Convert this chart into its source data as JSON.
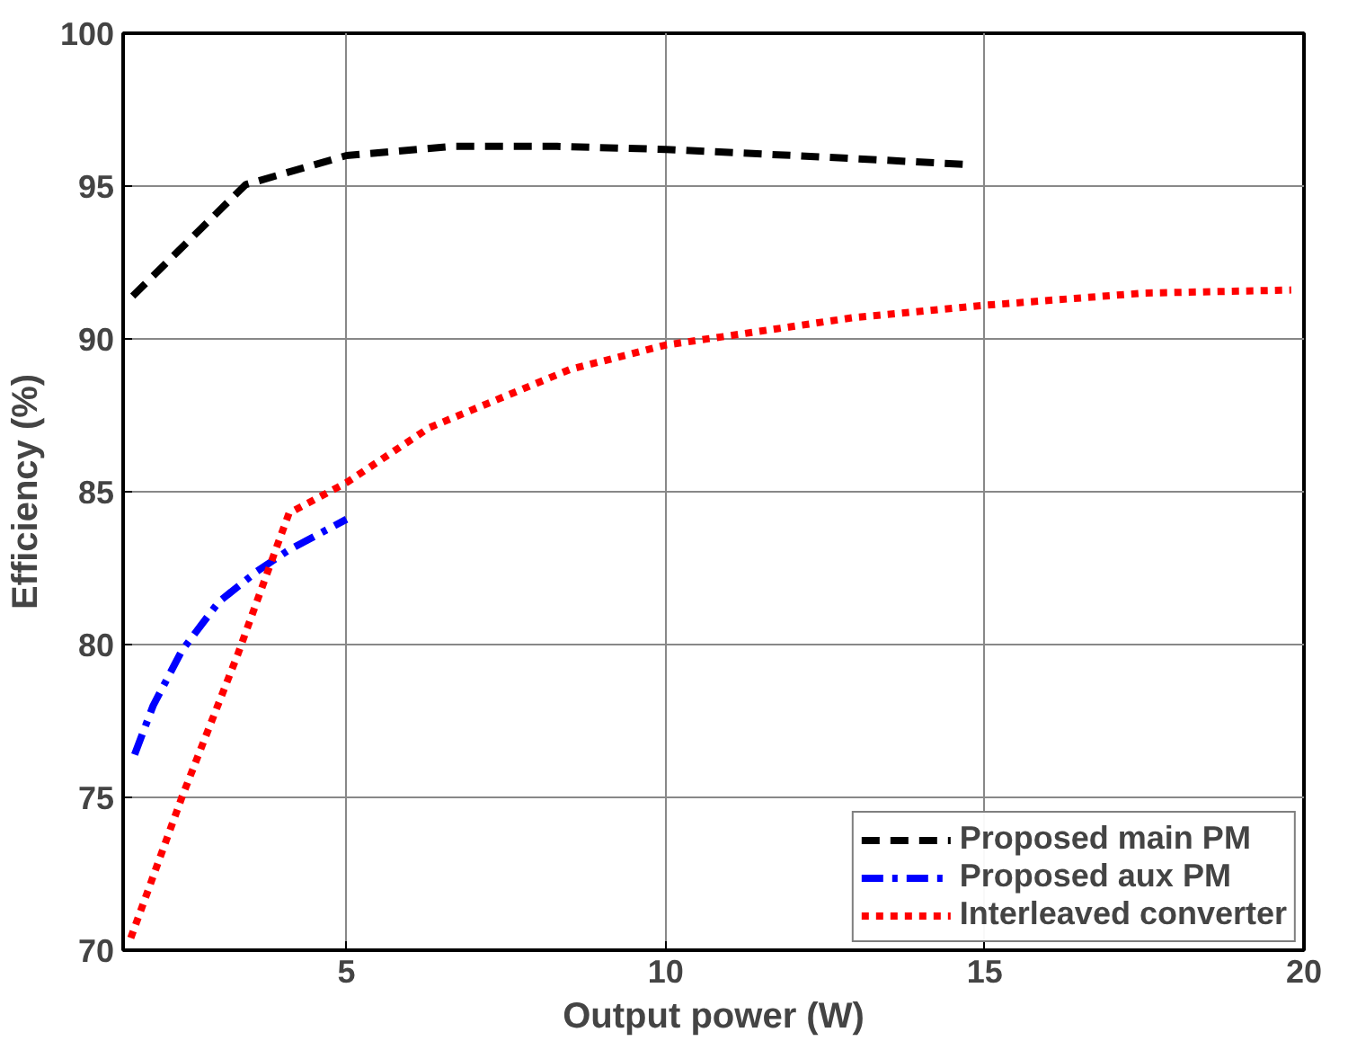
{
  "chart_data": {
    "type": "line",
    "xlabel": "Output power (W)",
    "ylabel": "Efficiency (%)",
    "xlim": [
      1.5,
      20
    ],
    "ylim": [
      70,
      100
    ],
    "xticks": [
      5,
      10,
      15,
      20
    ],
    "yticks": [
      70,
      75,
      80,
      85,
      90,
      95,
      100
    ],
    "grid": true,
    "legend": "bottom right",
    "series": [
      {
        "name": "Proposed main PM",
        "color": "#000000",
        "line_style": "dashed",
        "x": [
          1.65,
          3.42,
          5,
          6.65,
          8.3,
          10,
          12,
          14.8
        ],
        "values": [
          91.4,
          95.05,
          96.0,
          96.3,
          96.3,
          96.2,
          96.0,
          95.7
        ]
      },
      {
        "name": "Proposed aux PM",
        "color": "#0000ff",
        "line_style": "dashdot",
        "x": [
          1.68,
          1.97,
          2.42,
          3.0,
          3.6,
          4.1,
          5
        ],
        "values": [
          76.4,
          78,
          79.8,
          81.4,
          82.4,
          83.1,
          84.1
        ]
      },
      {
        "name": "Interleaved converter",
        "color": "#ff0000",
        "line_style": "dotted",
        "x": [
          1.62,
          2.42,
          3.3,
          3.75,
          4.1,
          5,
          6.3,
          8.5,
          10,
          12.95,
          15,
          17.5,
          19.8
        ],
        "values": [
          70.4,
          75,
          79.7,
          82.3,
          84.3,
          85.3,
          87.1,
          89.0,
          89.8,
          90.7,
          91.1,
          91.5,
          91.6
        ]
      }
    ]
  }
}
